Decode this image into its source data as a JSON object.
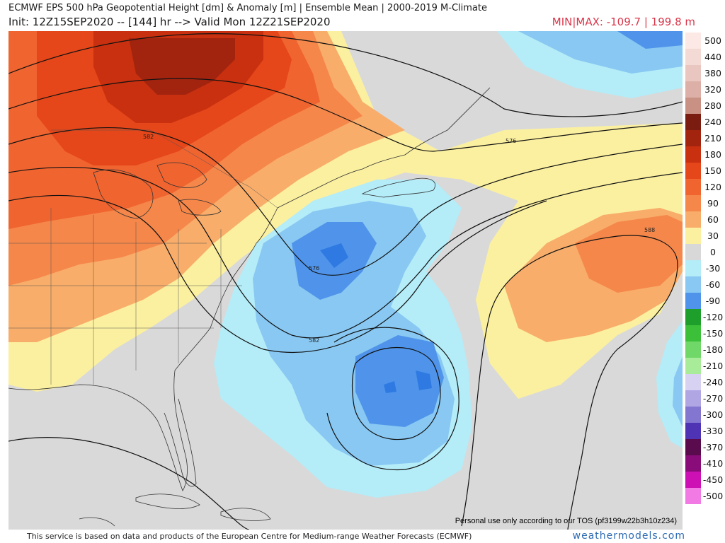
{
  "header": {
    "title": "ECMWF EPS 500 hPa Geopotential Height [dm] & Anomaly [m] | Ensemble Mean | 2000-2019 M-Climate",
    "init_line": "Init: 12Z15SEP2020 -- [144] hr --> Valid Mon 12Z21SEP2020",
    "minmax": "MIN|MAX: -109.7 | 199.8 m"
  },
  "legend": [
    {
      "label": "500",
      "color": "#fce8e4"
    },
    {
      "label": "440",
      "color": "#f4dad4"
    },
    {
      "label": "380",
      "color": "#e9c6bf"
    },
    {
      "label": "320",
      "color": "#dcb0a6"
    },
    {
      "label": "280",
      "color": "#c99184"
    },
    {
      "label": "240",
      "color": "#7a1c10"
    },
    {
      "label": "210",
      "color": "#a2240f"
    },
    {
      "label": "180",
      "color": "#c8300f"
    },
    {
      "label": "150",
      "color": "#e5461a"
    },
    {
      "label": "120",
      "color": "#f06430"
    },
    {
      "label": "90",
      "color": "#f5874a"
    },
    {
      "label": "60",
      "color": "#f8ad6a"
    },
    {
      "label": "30",
      "color": "#fbf0a0"
    },
    {
      "label": "0",
      "color": "#d8d8d8"
    },
    {
      "label": "-30",
      "color": "#b4ecf8"
    },
    {
      "label": "-60",
      "color": "#88c8f2"
    },
    {
      "label": "-90",
      "color": "#4f94ea"
    },
    {
      "label": "-120",
      "color": "#1e9e2a"
    },
    {
      "label": "-150",
      "color": "#3cc03a"
    },
    {
      "label": "-180",
      "color": "#6fd868"
    },
    {
      "label": "-210",
      "color": "#a8ec9a"
    },
    {
      "label": "-240",
      "color": "#d8d2f2"
    },
    {
      "label": "-270",
      "color": "#b0a6e4"
    },
    {
      "label": "-300",
      "color": "#8276d0"
    },
    {
      "label": "-330",
      "color": "#4e34b4"
    },
    {
      "label": "-370",
      "color": "#5a0b4e"
    },
    {
      "label": "-410",
      "color": "#8a0c7a"
    },
    {
      "label": "-450",
      "color": "#cc10b4"
    },
    {
      "label": "-500",
      "color": "#f27ae4"
    }
  ],
  "contour_labels": {
    "c582_north": "582",
    "c576": "576",
    "c582_south": "582",
    "c588": "588",
    "c576_ne": "576"
  },
  "tos": "Personal use only according to our TOS (pf3199w22b3h10z234)",
  "footer": "This service is based on data and products of the European Centre for Medium-range Weather Forecasts (ECMWF)",
  "brand": "weathermodels.com"
}
